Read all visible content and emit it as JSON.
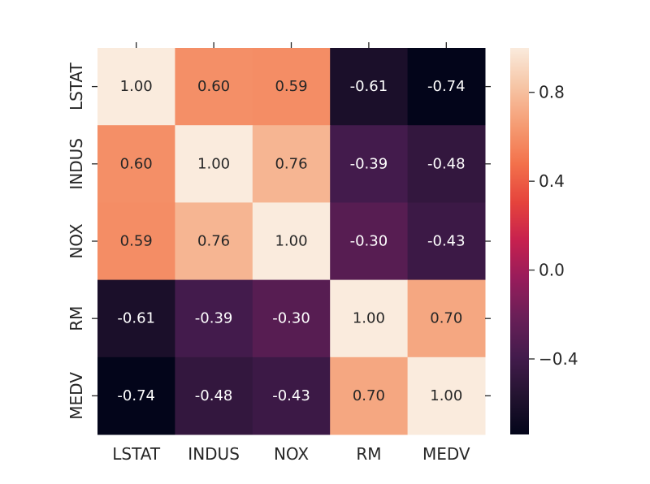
{
  "chart_data": {
    "type": "heatmap",
    "title": "",
    "xlabel": "",
    "ylabel": "",
    "x_categories": [
      "LSTAT",
      "INDUS",
      "NOX",
      "RM",
      "MEDV"
    ],
    "y_categories": [
      "LSTAT",
      "INDUS",
      "NOX",
      "RM",
      "MEDV"
    ],
    "values": [
      [
        1.0,
        0.6,
        0.59,
        -0.61,
        -0.74
      ],
      [
        0.6,
        1.0,
        0.76,
        -0.39,
        -0.48
      ],
      [
        0.59,
        0.76,
        1.0,
        -0.3,
        -0.43
      ],
      [
        -0.61,
        -0.39,
        -0.3,
        1.0,
        0.7
      ],
      [
        -0.74,
        -0.48,
        -0.43,
        0.7,
        1.0
      ]
    ],
    "annotation_format": "0.00",
    "colormap": "rocket",
    "colorbar": {
      "vmin": -0.74,
      "vmax": 1.0,
      "ticks": [
        0.8,
        0.4,
        0.0,
        -0.4
      ],
      "tick_labels": [
        "0.8",
        "0.4",
        "0.0",
        "−0.4"
      ]
    }
  }
}
